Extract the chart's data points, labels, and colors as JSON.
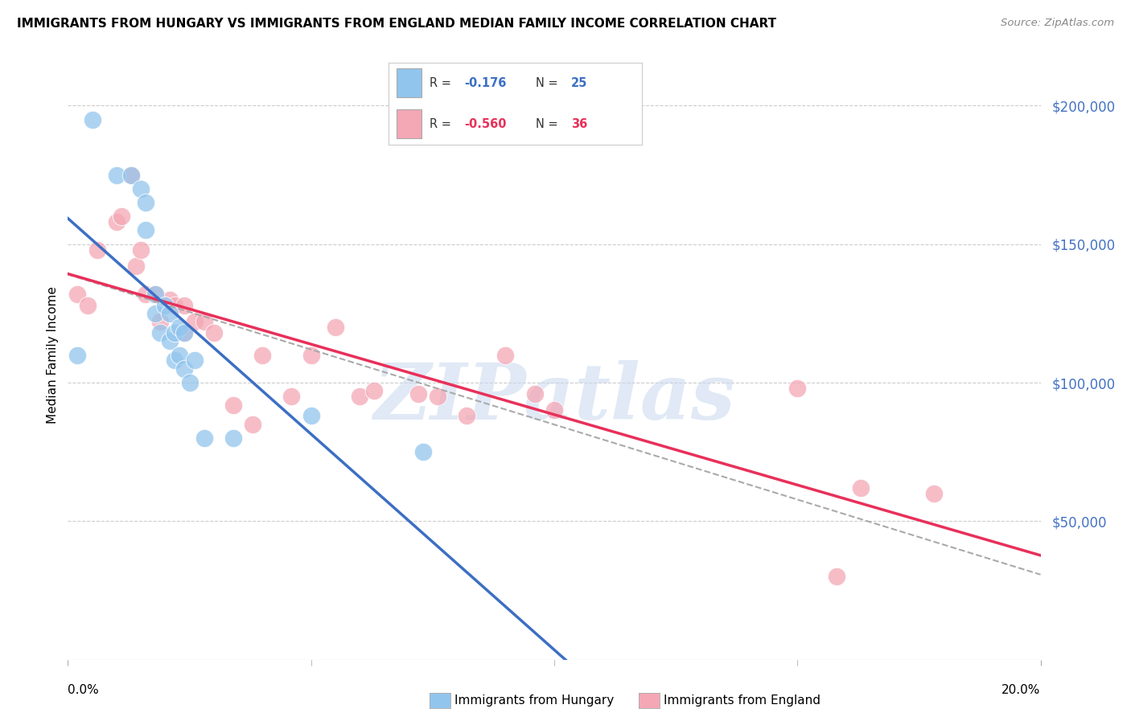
{
  "title": "IMMIGRANTS FROM HUNGARY VS IMMIGRANTS FROM ENGLAND MEDIAN FAMILY INCOME CORRELATION CHART",
  "source": "Source: ZipAtlas.com",
  "ylabel": "Median Family Income",
  "r_hungary": -0.176,
  "n_hungary": 25,
  "r_england": -0.56,
  "n_england": 36,
  "yticks": [
    50000,
    100000,
    150000,
    200000
  ],
  "ytick_labels": [
    "$50,000",
    "$100,000",
    "$150,000",
    "$200,000"
  ],
  "ylim": [
    0,
    220000
  ],
  "xlim": [
    0.0,
    0.2
  ],
  "color_hungary": "#92C5ED",
  "color_england": "#F4A7B5",
  "line_color_hungary": "#3C6FC4",
  "line_color_england": "#E8305A",
  "dash_color": "#AAAAAA",
  "background_color": "#FFFFFF",
  "grid_color": "#CCCCCC",
  "watermark": "ZIPatlas",
  "hungary_x": [
    0.005,
    0.01,
    0.013,
    0.015,
    0.016,
    0.016,
    0.018,
    0.018,
    0.019,
    0.02,
    0.021,
    0.021,
    0.022,
    0.022,
    0.023,
    0.023,
    0.024,
    0.024,
    0.025,
    0.026,
    0.028,
    0.034,
    0.05,
    0.073,
    0.002
  ],
  "hungary_y": [
    195000,
    175000,
    175000,
    170000,
    165000,
    155000,
    132000,
    125000,
    118000,
    128000,
    125000,
    115000,
    118000,
    108000,
    120000,
    110000,
    118000,
    105000,
    100000,
    108000,
    80000,
    80000,
    88000,
    75000,
    110000
  ],
  "england_x": [
    0.002,
    0.004,
    0.006,
    0.01,
    0.011,
    0.013,
    0.014,
    0.015,
    0.016,
    0.018,
    0.019,
    0.021,
    0.022,
    0.024,
    0.024,
    0.026,
    0.028,
    0.03,
    0.034,
    0.038,
    0.04,
    0.046,
    0.05,
    0.055,
    0.06,
    0.063,
    0.072,
    0.076,
    0.082,
    0.09,
    0.096,
    0.1,
    0.15,
    0.158,
    0.163,
    0.178
  ],
  "england_y": [
    132000,
    128000,
    148000,
    158000,
    160000,
    175000,
    142000,
    148000,
    132000,
    132000,
    122000,
    130000,
    128000,
    128000,
    118000,
    122000,
    122000,
    118000,
    92000,
    85000,
    110000,
    95000,
    110000,
    120000,
    95000,
    97000,
    96000,
    95000,
    88000,
    110000,
    96000,
    90000,
    98000,
    30000,
    62000,
    60000
  ],
  "xtick_positions": [
    0.0,
    0.05,
    0.1,
    0.15,
    0.2
  ],
  "legend_r_hungary": "R =  -0.176",
  "legend_n_hungary": "N = 25",
  "legend_r_england": "R =  -0.560",
  "legend_n_england": "N = 36"
}
